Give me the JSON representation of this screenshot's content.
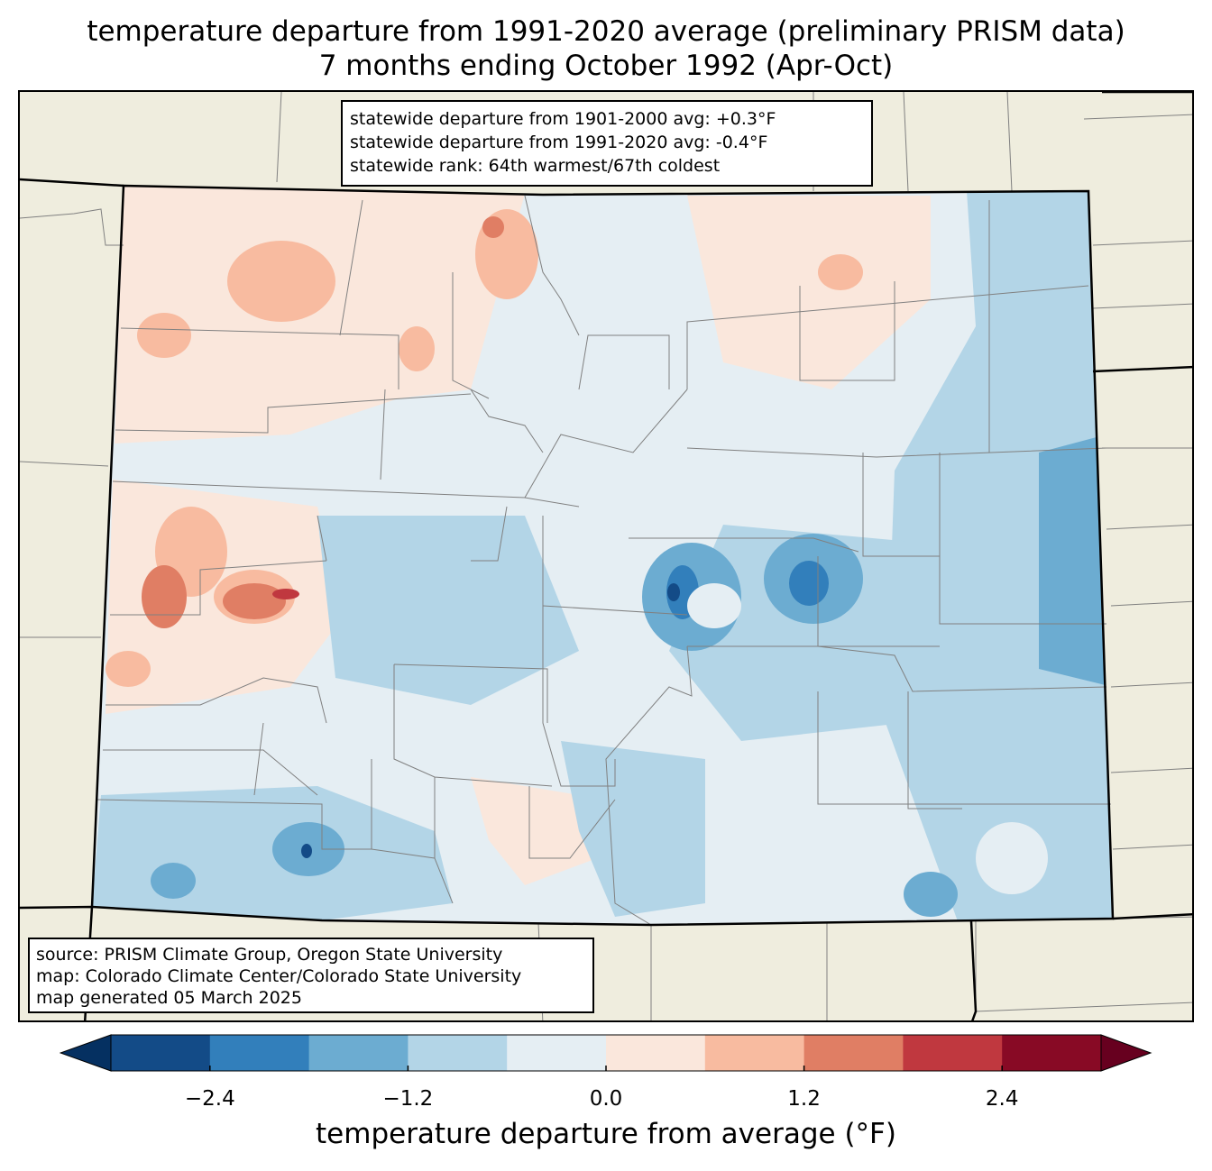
{
  "title_line1": "temperature departure from 1991-2020 average (preliminary PRISM data)",
  "title_line2": "7 months ending October 1992 (Apr-Oct)",
  "stats": {
    "line1": "statewide departure from 1901-2000 avg: +0.3°F",
    "line2": "statewide departure from 1991-2020 avg: -0.4°F",
    "line3": "statewide rank: 64th warmest/67th coldest"
  },
  "source": {
    "line1": "source: PRISM Climate Group, Oregon State University",
    "line2": "map: Colorado Climate Center/Colorado State University",
    "line3": "map generated 05 March 2025"
  },
  "colorbar": {
    "label": "temperature departure from average (°F)",
    "ticks": [
      "−2.4",
      "−1.2",
      "0.0",
      "1.2",
      "2.4"
    ],
    "tick_values": [
      -2.4,
      -1.2,
      0.0,
      1.2,
      2.4
    ],
    "bounds": [
      -3.0,
      3.0
    ],
    "step": 0.6,
    "colors": [
      "#053061",
      "#134b87",
      "#327fbb",
      "#6cacd1",
      "#b3d5e7",
      "#e5eef3",
      "#fae7dc",
      "#f8bba0",
      "#e07e64",
      "#c0383f",
      "#880a25",
      "#67001f"
    ]
  },
  "map_colors": {
    "land": "#efedde",
    "state_border": "#000000",
    "county_border": "#808080"
  }
}
